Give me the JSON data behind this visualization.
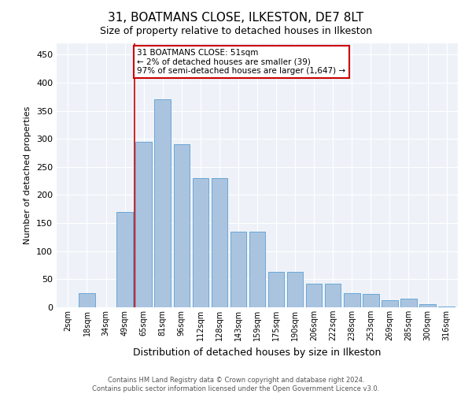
{
  "title": "31, BOATMANS CLOSE, ILKESTON, DE7 8LT",
  "subtitle": "Size of property relative to detached houses in Ilkeston",
  "xlabel": "Distribution of detached houses by size in Ilkeston",
  "ylabel": "Number of detached properties",
  "categories": [
    "2sqm",
    "18sqm",
    "34sqm",
    "49sqm",
    "65sqm",
    "81sqm",
    "96sqm",
    "112sqm",
    "128sqm",
    "143sqm",
    "159sqm",
    "175sqm",
    "190sqm",
    "206sqm",
    "222sqm",
    "238sqm",
    "253sqm",
    "269sqm",
    "285sqm",
    "300sqm",
    "316sqm"
  ],
  "values": [
    0,
    25,
    0,
    170,
    295,
    370,
    290,
    230,
    230,
    135,
    135,
    63,
    63,
    42,
    42,
    25,
    24,
    13,
    15,
    5,
    2
  ],
  "bar_color": "#aac4e0",
  "bar_edge_color": "#5a9fd4",
  "vline_color": "#cc0000",
  "vline_x": 3.5,
  "annotation_text": "31 BOATMANS CLOSE: 51sqm\n← 2% of detached houses are smaller (39)\n97% of semi-detached houses are larger (1,647) →",
  "annotation_box_color": "#ffffff",
  "annotation_box_edge": "#cc0000",
  "footer_line1": "Contains HM Land Registry data © Crown copyright and database right 2024.",
  "footer_line2": "Contains public sector information licensed under the Open Government Licence v3.0.",
  "bg_color": "#eef2f8",
  "ylim": [
    0,
    470
  ],
  "yticks": [
    0,
    50,
    100,
    150,
    200,
    250,
    300,
    350,
    400,
    450
  ],
  "title_fontsize": 11,
  "subtitle_fontsize": 9,
  "ylabel_fontsize": 8,
  "xlabel_fontsize": 9
}
